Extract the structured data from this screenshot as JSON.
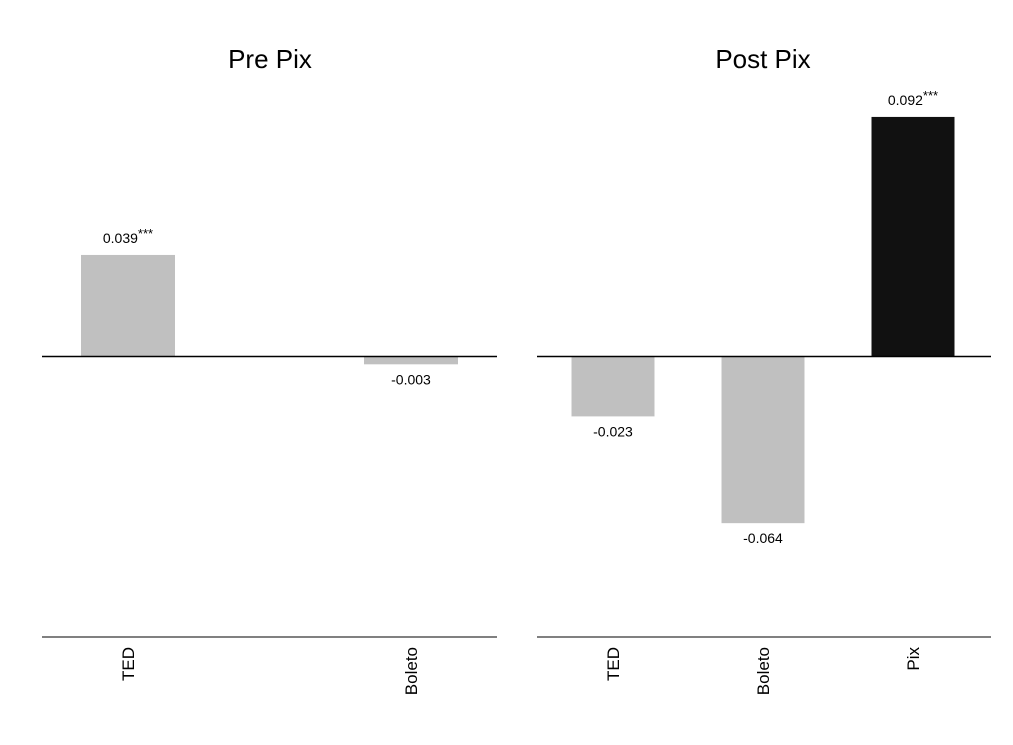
{
  "colors": {
    "bar_default": "#c0c0c0",
    "bar_highlight": "#111111",
    "axis_line": "#000000",
    "background": "#ffffff"
  },
  "chart_data": [
    {
      "type": "bar",
      "title": "Pre Pix",
      "xlabel": "",
      "ylabel": "",
      "ylim": [
        -0.11,
        0.11
      ],
      "grid": false,
      "categories": [
        "TED",
        "Boleto"
      ],
      "values": [
        0.039,
        -0.003
      ],
      "value_labels": [
        "0.039",
        "-0.003"
      ],
      "significance": [
        "***",
        ""
      ],
      "bar_colors": [
        "#c0c0c0",
        "#c0c0c0"
      ]
    },
    {
      "type": "bar",
      "title": "Post Pix",
      "xlabel": "",
      "ylabel": "",
      "ylim": [
        -0.11,
        0.11
      ],
      "grid": false,
      "categories": [
        "TED",
        "Boleto",
        "Pix"
      ],
      "values": [
        -0.023,
        -0.064,
        0.092
      ],
      "value_labels": [
        "-0.023",
        "-0.064",
        "0.092"
      ],
      "significance": [
        "",
        "",
        "***"
      ],
      "bar_colors": [
        "#c0c0c0",
        "#c0c0c0",
        "#111111"
      ]
    }
  ]
}
